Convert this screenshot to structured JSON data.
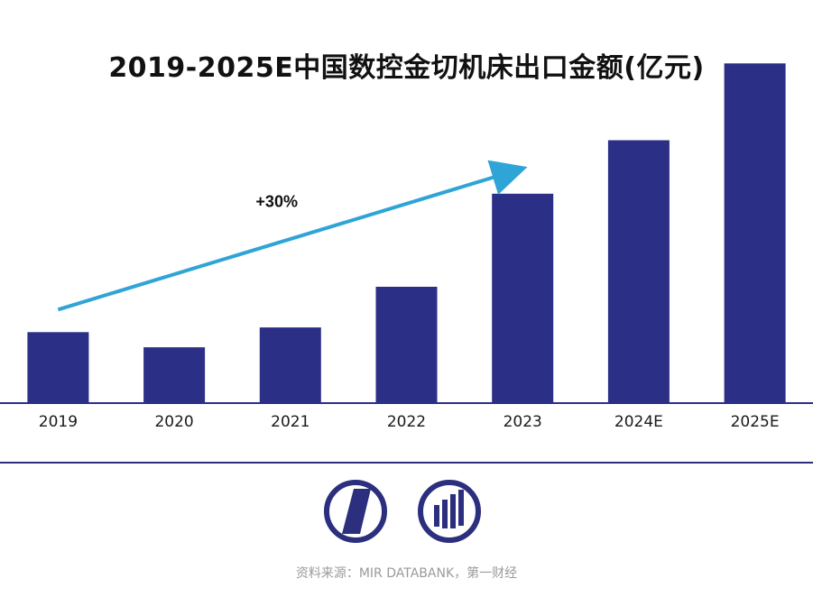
{
  "title": "2019-2025E中国数控金切机床出口金额(亿元)",
  "chart_data": {
    "type": "bar",
    "title": "2019-2025E中国数控金切机床出口金额(亿元)",
    "categories": [
      "2019",
      "2020",
      "2021",
      "2022",
      "2023",
      "2024E",
      "2025E"
    ],
    "values": [
      61,
      48,
      65,
      100,
      180,
      226,
      292
    ],
    "ylim": [
      0,
      300
    ],
    "xlabel": "",
    "ylabel": "",
    "grid": false,
    "bar_color": "#2b2f86",
    "annotation": {
      "text": "+30%",
      "from": "2019",
      "to": "2023",
      "arrow_color": "#2fa4d6"
    }
  },
  "footer": {
    "source": "资料来源：MIR DATABANK，第一财经",
    "logo_icons": [
      "mir-logo-icon",
      "databank-logo-icon"
    ],
    "divider_color": "#2b2f7d"
  }
}
